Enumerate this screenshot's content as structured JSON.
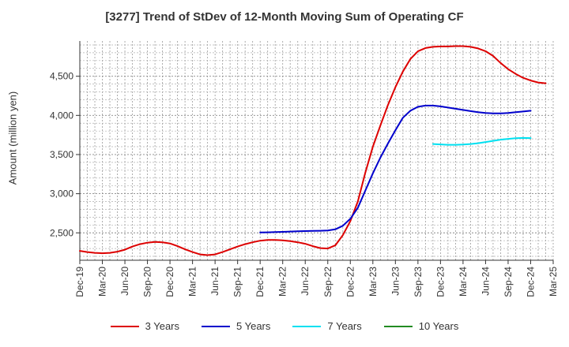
{
  "chart_data": {
    "type": "line",
    "title": "[3277]  Trend of StDev of 12-Month Moving Sum of Operating CF",
    "ylabel": "Amount (million yen)",
    "xlabel": "",
    "x_ticks": [
      "Dec-19",
      "Mar-20",
      "Jun-20",
      "Sep-20",
      "Dec-20",
      "Mar-21",
      "Jun-21",
      "Sep-21",
      "Dec-21",
      "Mar-22",
      "Jun-22",
      "Sep-22",
      "Dec-22",
      "Mar-23",
      "Jun-23",
      "Sep-23",
      "Dec-23",
      "Mar-24",
      "Jun-24",
      "Sep-24",
      "Dec-24",
      "Mar-25"
    ],
    "y_ticks": [
      2500,
      3000,
      3500,
      4000,
      4500
    ],
    "y_tick_labels": [
      "2,500",
      "3,000",
      "3,500",
      "4,000",
      "4,500"
    ],
    "ylim": [
      2150,
      4950
    ],
    "grid": true,
    "legend_position": "bottom",
    "series": [
      {
        "name": "3 Years",
        "color": "#dd0000",
        "points": [
          [
            "Dec-19",
            2270
          ],
          [
            "Jan-20",
            2255
          ],
          [
            "Feb-20",
            2245
          ],
          [
            "Mar-20",
            2240
          ],
          [
            "Apr-20",
            2245
          ],
          [
            "May-20",
            2260
          ],
          [
            "Jun-20",
            2285
          ],
          [
            "Jul-20",
            2325
          ],
          [
            "Aug-20",
            2355
          ],
          [
            "Sep-20",
            2375
          ],
          [
            "Oct-20",
            2385
          ],
          [
            "Nov-20",
            2380
          ],
          [
            "Dec-20",
            2365
          ],
          [
            "Jan-21",
            2330
          ],
          [
            "Feb-21",
            2290
          ],
          [
            "Mar-21",
            2255
          ],
          [
            "Apr-21",
            2225
          ],
          [
            "May-21",
            2215
          ],
          [
            "Jun-21",
            2225
          ],
          [
            "Jul-21",
            2255
          ],
          [
            "Aug-21",
            2290
          ],
          [
            "Sep-21",
            2325
          ],
          [
            "Oct-21",
            2355
          ],
          [
            "Nov-21",
            2380
          ],
          [
            "Dec-21",
            2400
          ],
          [
            "Jan-22",
            2410
          ],
          [
            "Feb-22",
            2410
          ],
          [
            "Mar-22",
            2405
          ],
          [
            "Apr-22",
            2395
          ],
          [
            "May-22",
            2380
          ],
          [
            "Jun-22",
            2360
          ],
          [
            "Jul-22",
            2330
          ],
          [
            "Aug-22",
            2305
          ],
          [
            "Sep-22",
            2300
          ],
          [
            "Oct-22",
            2340
          ],
          [
            "Nov-22",
            2470
          ],
          [
            "Dec-22",
            2650
          ],
          [
            "Jan-23",
            2900
          ],
          [
            "Feb-23",
            3270
          ],
          [
            "Mar-23",
            3600
          ],
          [
            "Apr-23",
            3870
          ],
          [
            "May-23",
            4130
          ],
          [
            "Jun-23",
            4360
          ],
          [
            "Jul-23",
            4560
          ],
          [
            "Aug-23",
            4720
          ],
          [
            "Sep-23",
            4820
          ],
          [
            "Oct-23",
            4860
          ],
          [
            "Nov-23",
            4875
          ],
          [
            "Dec-23",
            4880
          ],
          [
            "Jan-24",
            4880
          ],
          [
            "Feb-24",
            4885
          ],
          [
            "Mar-24",
            4885
          ],
          [
            "Apr-24",
            4875
          ],
          [
            "May-24",
            4855
          ],
          [
            "Jun-24",
            4820
          ],
          [
            "Jul-24",
            4760
          ],
          [
            "Aug-24",
            4670
          ],
          [
            "Sep-24",
            4590
          ],
          [
            "Oct-24",
            4530
          ],
          [
            "Nov-24",
            4480
          ],
          [
            "Dec-24",
            4445
          ],
          [
            "Jan-25",
            4420
          ],
          [
            "Feb-25",
            4410
          ]
        ]
      },
      {
        "name": "5 Years",
        "color": "#0000cc",
        "points": [
          [
            "Dec-21",
            2505
          ],
          [
            "Jan-22",
            2507
          ],
          [
            "Feb-22",
            2510
          ],
          [
            "Mar-22",
            2513
          ],
          [
            "Apr-22",
            2517
          ],
          [
            "May-22",
            2520
          ],
          [
            "Jun-22",
            2523
          ],
          [
            "Jul-22",
            2525
          ],
          [
            "Aug-22",
            2527
          ],
          [
            "Sep-22",
            2530
          ],
          [
            "Oct-22",
            2545
          ],
          [
            "Nov-22",
            2590
          ],
          [
            "Dec-22",
            2680
          ],
          [
            "Jan-23",
            2820
          ],
          [
            "Feb-23",
            3040
          ],
          [
            "Mar-23",
            3260
          ],
          [
            "Apr-23",
            3460
          ],
          [
            "May-23",
            3640
          ],
          [
            "Jun-23",
            3810
          ],
          [
            "Jul-23",
            3970
          ],
          [
            "Aug-23",
            4060
          ],
          [
            "Sep-23",
            4110
          ],
          [
            "Oct-23",
            4125
          ],
          [
            "Nov-23",
            4125
          ],
          [
            "Dec-23",
            4115
          ],
          [
            "Jan-24",
            4100
          ],
          [
            "Feb-24",
            4085
          ],
          [
            "Mar-24",
            4070
          ],
          [
            "Apr-24",
            4055
          ],
          [
            "May-24",
            4040
          ],
          [
            "Jun-24",
            4030
          ],
          [
            "Jul-24",
            4025
          ],
          [
            "Aug-24",
            4025
          ],
          [
            "Sep-24",
            4030
          ],
          [
            "Oct-24",
            4040
          ],
          [
            "Nov-24",
            4050
          ],
          [
            "Dec-24",
            4060
          ]
        ]
      },
      {
        "name": "7 Years",
        "color": "#00e0f0",
        "points": [
          [
            "Nov-23",
            3635
          ],
          [
            "Dec-23",
            3630
          ],
          [
            "Jan-24",
            3625
          ],
          [
            "Feb-24",
            3625
          ],
          [
            "Mar-24",
            3628
          ],
          [
            "Apr-24",
            3635
          ],
          [
            "May-24",
            3645
          ],
          [
            "Jun-24",
            3660
          ],
          [
            "Jul-24",
            3675
          ],
          [
            "Aug-24",
            3690
          ],
          [
            "Sep-24",
            3700
          ],
          [
            "Oct-24",
            3708
          ],
          [
            "Nov-24",
            3712
          ],
          [
            "Dec-24",
            3710
          ]
        ]
      },
      {
        "name": "10 Years",
        "color": "#228b22",
        "points": []
      }
    ]
  }
}
